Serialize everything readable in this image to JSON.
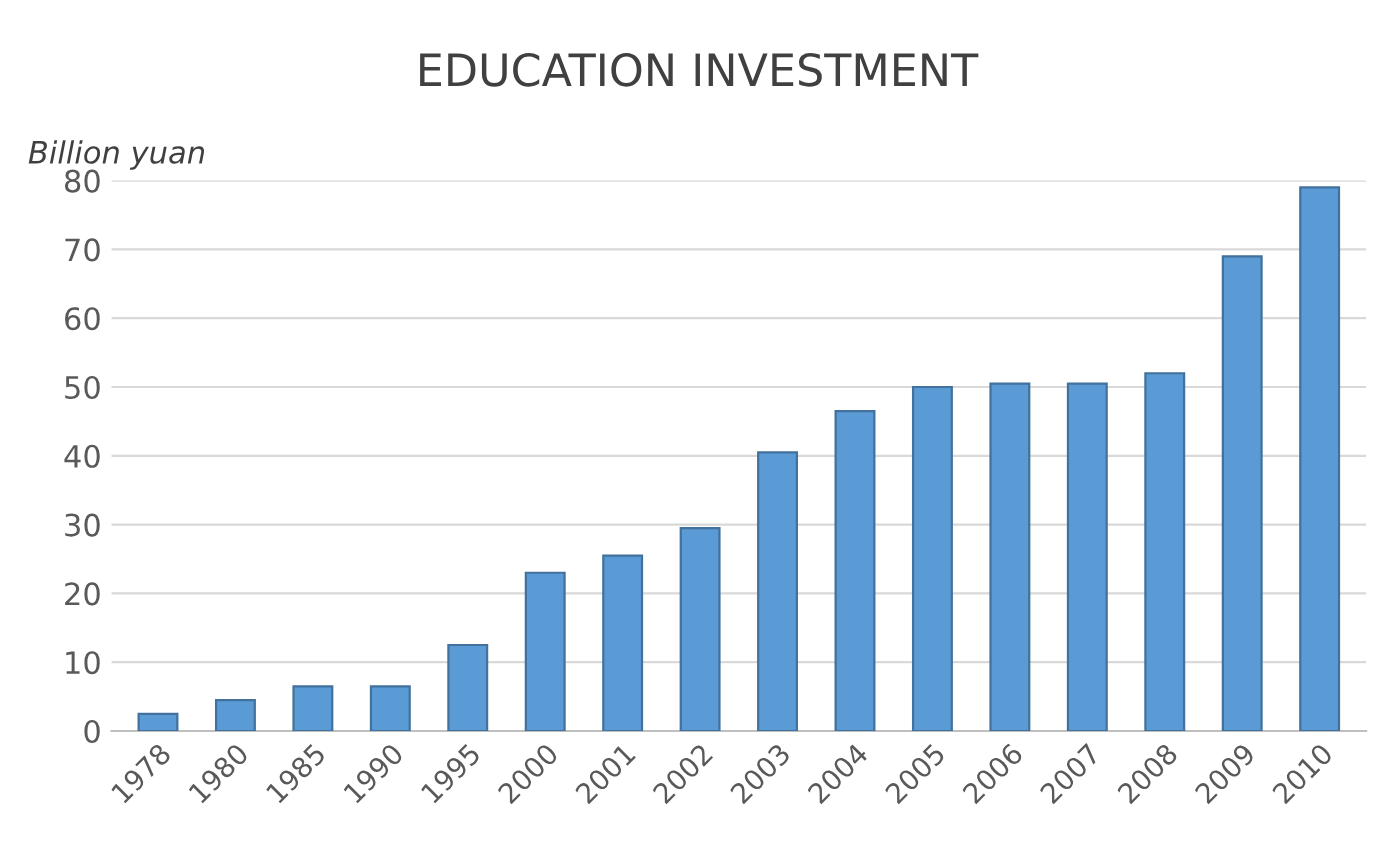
{
  "chart_data": {
    "type": "bar",
    "title": "EDUCATION INVESTMENT",
    "ylabel": "Billion yuan",
    "categories": [
      "1978",
      "1980",
      "1985",
      "1990",
      "1995",
      "2000",
      "2001",
      "2002",
      "2003",
      "2004",
      "2005",
      "2006",
      "2007",
      "2008",
      "2009",
      "2010"
    ],
    "values": [
      2.5,
      4.5,
      6.5,
      6.5,
      12.5,
      23,
      25.5,
      29.5,
      40.5,
      46.5,
      50,
      50.5,
      50.5,
      52,
      69,
      79
    ],
    "color": "#5b9bd5",
    "ylim": [
      0,
      80
    ],
    "yticks": [
      0,
      10,
      20,
      30,
      40,
      50,
      60,
      70,
      80
    ],
    "grid": "y"
  }
}
